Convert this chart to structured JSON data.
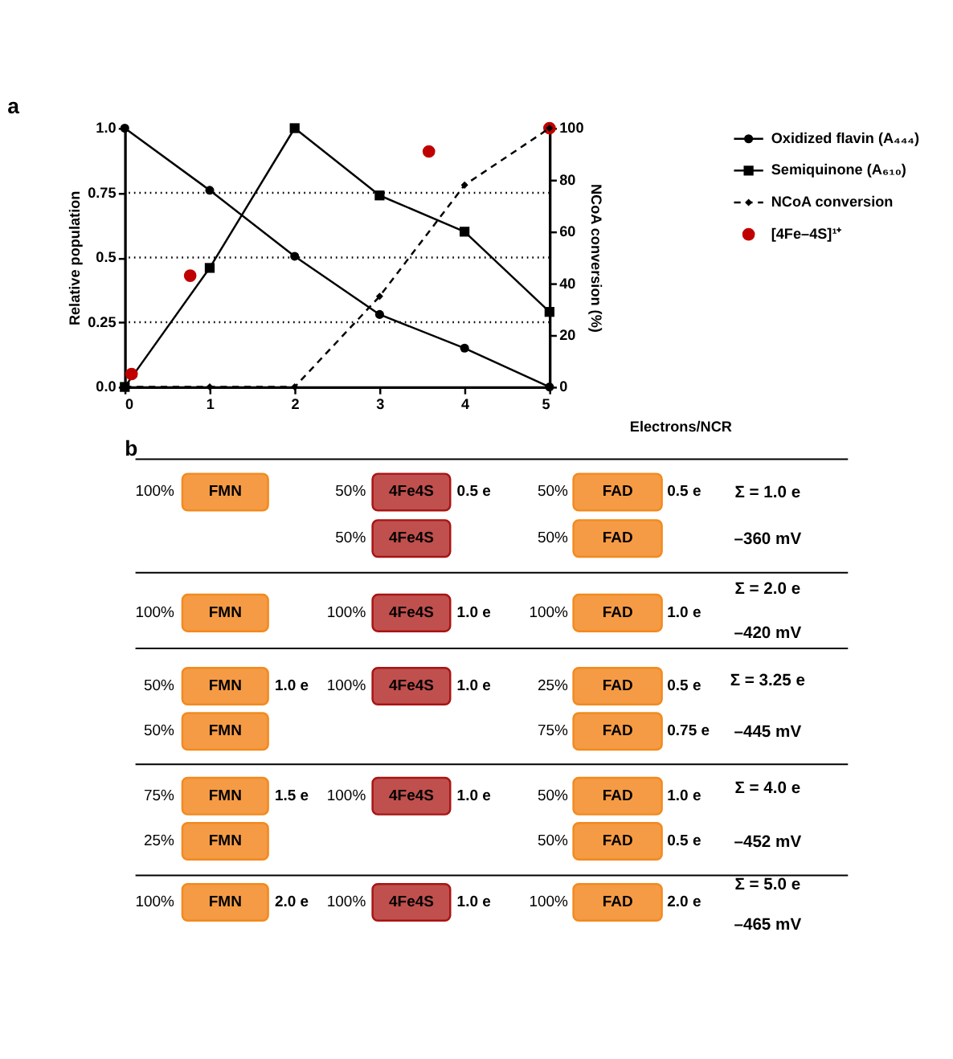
{
  "chart_data": [
    {
      "type": "line",
      "title": "a",
      "x": [
        0,
        1,
        2,
        3,
        4,
        5
      ],
      "xlabel": "Electrons/NCR",
      "ylabel": "Relative population",
      "y2label": "NCoA conversion (%)",
      "xlim": [
        0,
        5
      ],
      "xticks": [
        0,
        1,
        2,
        3,
        4,
        5
      ],
      "ylim": [
        0,
        1
      ],
      "yticks": [
        {
          "value": 0,
          "label": "0.0"
        },
        0.25,
        0.5,
        0.75,
        {
          "value": 1,
          "label": "1.0"
        }
      ],
      "y2lim": [
        0,
        100
      ],
      "y2ticks": [
        0,
        20,
        40,
        60,
        80,
        100
      ],
      "series": [
        {
          "name": "Oxidized flavin (A₄₄₄)",
          "color": "#000000",
          "marker": "circle",
          "line_style": "solid",
          "values": [
            1.0,
            0.76,
            0.505,
            0.28,
            0.15,
            0.0
          ]
        },
        {
          "name": "Semiquinone (A₆₁₀)",
          "color": "#000000",
          "marker": "square",
          "line_style": "solid",
          "values": [
            0.0,
            0.46,
            1.0,
            0.74,
            0.6,
            0.29
          ]
        },
        {
          "name": "NCoA conversion",
          "color": "#000000",
          "marker": "diamond",
          "line_style": "dashed",
          "axis": "y2",
          "values": [
            0,
            0,
            0,
            35,
            78,
            100
          ]
        },
        {
          "name": "[4Fe–4S]¹⁺",
          "color": "#c00000",
          "type": "scatter",
          "marker": "circle",
          "x": [
            0.08,
            0.77,
            3.58,
            5
          ],
          "values": [
            0.05,
            0.43,
            0.91,
            1.0
          ]
        }
      ],
      "ref_lines": [
        {
          "axis": "y",
          "value": 0.25,
          "line_style": "dotted"
        },
        {
          "axis": "y",
          "value": 0.5,
          "line_style": "dotted"
        },
        {
          "axis": "y",
          "value": 0.75,
          "line_style": "dotted"
        }
      ],
      "legend": "top right"
    },
    {
      "type": "other",
      "title": "b",
      "annotations": [
        "100%",
        "FMN",
        "50%",
        "4Fe4S",
        "0.5 e",
        "50%",
        "FAD",
        "0.5 e",
        "Σ = 1.0 e",
        "50%",
        "4Fe4S",
        "50%",
        "FAD",
        "–360 mV",
        "100%",
        "FMN",
        "100%",
        "4Fe4S",
        "1.0 e",
        "100%",
        "FAD",
        "1.0 e",
        "Σ = 2.0 e",
        "–420 mV",
        "50%",
        "FMN",
        "1.0 e",
        "100%",
        "4Fe4S",
        "1.0 e",
        "25%",
        "FAD",
        "0.5 e",
        "Σ = 3.25 e",
        "50%",
        "FMN",
        "75%",
        "FAD",
        "0.75 e",
        "–445 mV",
        "75%",
        "FMN",
        "1.5 e",
        "100%",
        "4Fe4S",
        "1.0 e",
        "50%",
        "FAD",
        "1.0 e",
        "Σ = 4.0 e",
        "25%",
        "FMN",
        "50%",
        "FAD",
        "0.5 e",
        "–452 mV",
        "100%",
        "FMN",
        "2.0 e",
        "100%",
        "4Fe4S",
        "1.0 e",
        "100%",
        "FAD",
        "2.0 e",
        "Σ = 5.0 e",
        "–465 mV"
      ]
    }
  ]
}
